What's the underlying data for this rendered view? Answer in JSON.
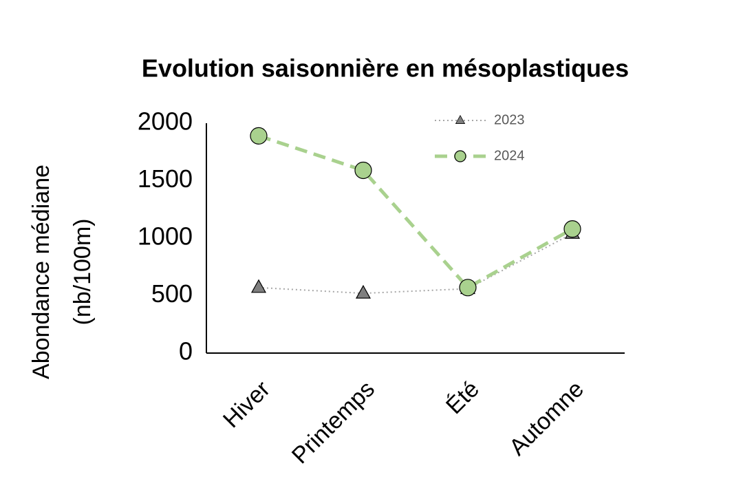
{
  "chart_data": {
    "type": "line",
    "title": "Evolution saisonnière en mésoplastiques",
    "ylabel": [
      "Abondance médiane",
      "(nb/100m)"
    ],
    "categories": [
      "Hiver",
      "Printemps",
      "Été",
      "Automne"
    ],
    "series": [
      {
        "name": "2023",
        "color": "#7f7f7f",
        "line_color": "#a6a6a6",
        "line_style": "dotted",
        "marker": "triangle",
        "values": [
          570,
          520,
          560,
          1040
        ]
      },
      {
        "name": "2024",
        "color": "#a9d18e",
        "line_color": "#a9d18e",
        "line_style": "dashed",
        "marker": "circle",
        "values": [
          1890,
          1590,
          570,
          1080
        ]
      }
    ],
    "ylim": [
      0,
      2000
    ],
    "yticks": [
      0,
      500,
      1000,
      1500,
      2000
    ],
    "grid": false,
    "legend": "top-right"
  }
}
